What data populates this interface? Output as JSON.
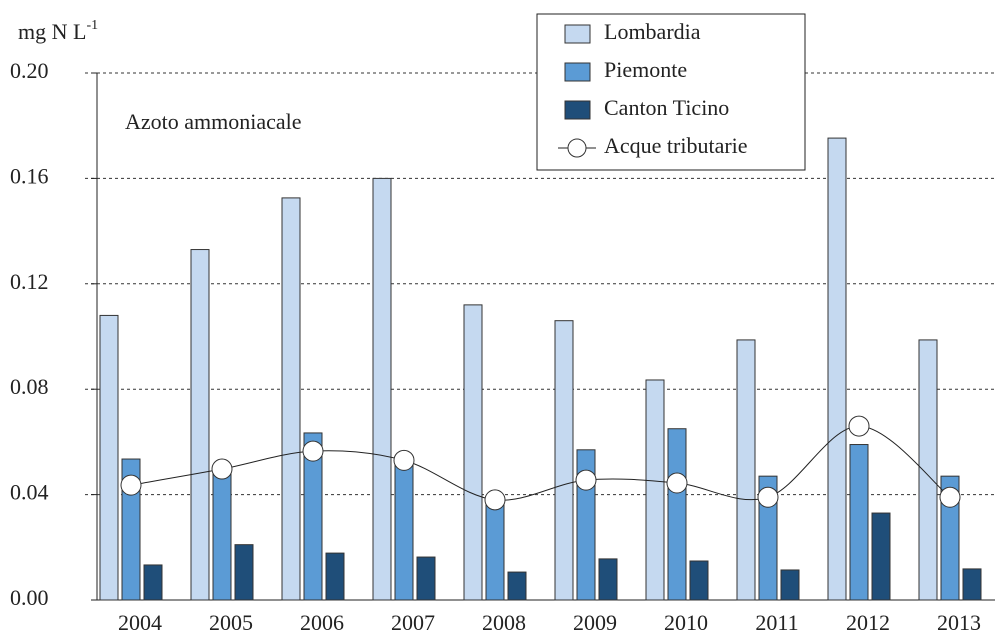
{
  "chart_data": {
    "type": "bar",
    "y_label": "mg N L",
    "y_label_sup": "-1",
    "annotation": "Azoto ammoniacale",
    "categories": [
      "2004",
      "2005",
      "2006",
      "2007",
      "2008",
      "2009",
      "2010",
      "2011",
      "2012",
      "2013"
    ],
    "series": [
      {
        "name": "Lombardia",
        "color": "#c5d9f0",
        "values": [
          0.108,
          0.133,
          0.1526,
          0.16,
          0.112,
          0.106,
          0.0835,
          0.0987,
          0.1753,
          0.0987
        ]
      },
      {
        "name": "Piemonte",
        "color": "#5b9bd5",
        "values": [
          0.0535,
          0.049,
          0.0634,
          0.052,
          0.038,
          0.057,
          0.065,
          0.047,
          0.059,
          0.047
        ]
      },
      {
        "name": "Canton Ticino",
        "color": "#1f4e79",
        "values": [
          0.0133,
          0.021,
          0.0178,
          0.0163,
          0.0106,
          0.0156,
          0.0148,
          0.0114,
          0.033,
          0.0118
        ]
      },
      {
        "name": "Acque tributarie",
        "color": "#ffffff",
        "type": "line",
        "values": [
          0.0436,
          0.0497,
          0.0565,
          0.053,
          0.038,
          0.0455,
          0.0444,
          0.039,
          0.066,
          0.039
        ]
      }
    ],
    "ylim": [
      0,
      0.2
    ],
    "yticks": [
      {
        "value": 0,
        "label": "0.00"
      },
      {
        "value": 0.04,
        "label": "0.04"
      },
      {
        "value": 0.08,
        "label": "0.08"
      },
      {
        "value": 0.12,
        "label": "0.12"
      },
      {
        "value": 0.16,
        "label": "0.16"
      },
      {
        "value": 0.2,
        "label": "0.20"
      }
    ],
    "grid": true
  }
}
